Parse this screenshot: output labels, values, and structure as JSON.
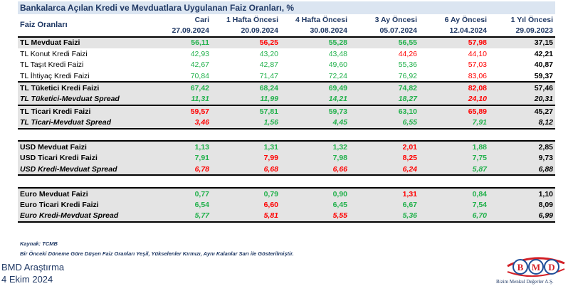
{
  "title": "Bankalarca Açılan Kredi ve Mevduatlara Uygulanan Faiz Oranları, %",
  "header": {
    "label": "Faiz Oranları",
    "columns": [
      "Cari",
      "1 Hafta Öncesi",
      "4 Hafta Öncesi",
      "3 Ay Öncesi",
      "6 Ay Öncesi",
      "1 Yıl Öncesi"
    ],
    "dates": [
      "27.09.2024",
      "20.09.2024",
      "30.08.2024",
      "05.07.2024",
      "12.04.2024",
      "29.09.2023"
    ]
  },
  "rows": [
    {
      "label": "TL Mevduat Faizi",
      "values": [
        "56,11",
        "56,25",
        "55,28",
        "56,55",
        "57,98",
        "37,15"
      ],
      "colors": [
        "g",
        "r",
        "g",
        "g",
        "r",
        "k"
      ]
    },
    {
      "label": "TL Konut Kredi Faizi",
      "values": [
        "42,93",
        "43,20",
        "43,48",
        "44,26",
        "44,10",
        "42,21"
      ],
      "colors": [
        "g",
        "g",
        "g",
        "r",
        "r",
        "k"
      ]
    },
    {
      "label": "TL Taşıt Kredi Faizi",
      "values": [
        "42,67",
        "42,87",
        "49,60",
        "55,36",
        "57,03",
        "40,87"
      ],
      "colors": [
        "g",
        "g",
        "g",
        "g",
        "r",
        "k"
      ]
    },
    {
      "label": "TL İhtiyaç Kredi Faizi",
      "values": [
        "70,84",
        "71,47",
        "72,24",
        "76,92",
        "83,06",
        "59,37"
      ],
      "colors": [
        "g",
        "g",
        "g",
        "g",
        "r",
        "k"
      ]
    },
    {
      "label": "TL Tüketici Kredi Faizi",
      "values": [
        "67,42",
        "68,24",
        "69,49",
        "74,82",
        "82,08",
        "57,46"
      ],
      "colors": [
        "g",
        "g",
        "g",
        "g",
        "r",
        "k"
      ]
    },
    {
      "label": "TL Tüketici-Mevduat Spread",
      "values": [
        "11,31",
        "11,99",
        "14,21",
        "18,27",
        "24,10",
        "20,31"
      ],
      "colors": [
        "g",
        "g",
        "g",
        "g",
        "r",
        "k"
      ]
    },
    {
      "label": "TL Ticari Kredi Faizi",
      "values": [
        "59,57",
        "57,81",
        "59,73",
        "63,10",
        "65,89",
        "45,27"
      ],
      "colors": [
        "r",
        "g",
        "g",
        "g",
        "r",
        "k"
      ]
    },
    {
      "label": "TL Ticari-Mevduat Spread",
      "values": [
        "3,46",
        "1,56",
        "4,45",
        "6,55",
        "7,91",
        "8,12"
      ],
      "colors": [
        "r",
        "g",
        "g",
        "g",
        "g",
        "k"
      ]
    },
    {
      "label": "USD Mevduat Faizi",
      "values": [
        "1,13",
        "1,31",
        "1,32",
        "2,01",
        "1,88",
        "2,85"
      ],
      "colors": [
        "g",
        "g",
        "g",
        "r",
        "g",
        "k"
      ]
    },
    {
      "label": "USD Ticari Kredi Faizi",
      "values": [
        "7,91",
        "7,99",
        "7,98",
        "8,25",
        "7,75",
        "9,73"
      ],
      "colors": [
        "g",
        "r",
        "g",
        "r",
        "g",
        "k"
      ]
    },
    {
      "label": "USD Kredi-Mevduat Spread",
      "values": [
        "6,78",
        "6,68",
        "6,66",
        "6,24",
        "5,87",
        "6,88"
      ],
      "colors": [
        "r",
        "r",
        "r",
        "r",
        "g",
        "k"
      ]
    },
    {
      "label": "Euro Mevduat Faizi",
      "values": [
        "0,77",
        "0,79",
        "0,90",
        "1,31",
        "0,84",
        "1,10"
      ],
      "colors": [
        "g",
        "g",
        "g",
        "r",
        "g",
        "k"
      ]
    },
    {
      "label": "Euro Ticari Kredi Faizi",
      "values": [
        "6,54",
        "6,60",
        "6,45",
        "6,67",
        "7,54",
        "8,09"
      ],
      "colors": [
        "g",
        "r",
        "g",
        "g",
        "g",
        "k"
      ]
    },
    {
      "label": "Euro Kredi-Mevduat Spread",
      "values": [
        "5,77",
        "5,81",
        "5,55",
        "5,36",
        "6,70",
        "6,99"
      ],
      "colors": [
        "g",
        "r",
        "r",
        "g",
        "g",
        "k"
      ]
    }
  ],
  "source": "Kaynak: TCMB",
  "legend_note": "Bir Önceki Döneme Göre Düşen Faiz Oranları Yeşil, Yükselenler Kırmızı, Aynı Kalanlar Sarı ile Gösterilmiştir.",
  "footer": {
    "name": "BMD Araştırma",
    "date": "4 Ekim 2024"
  },
  "logo": {
    "letters": "BMD",
    "caption": "Bizim Menkul Değerler A.Ş."
  },
  "colors": {
    "green": "#22b14c",
    "red": "#ff0000",
    "header_blue": "#1f3864",
    "title_bg": "#dbe5f1",
    "row_gray": "#e4e4e4",
    "logo_red": "#d32027",
    "logo_blue": "#1f4e99"
  }
}
